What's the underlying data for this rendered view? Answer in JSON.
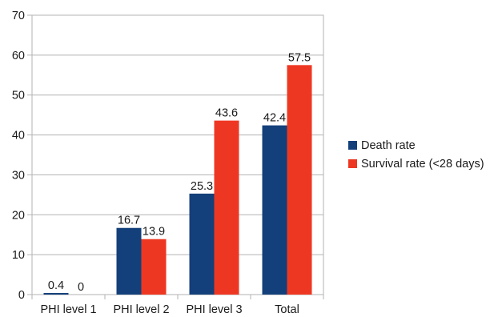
{
  "chart_data": {
    "type": "bar",
    "title": "",
    "xlabel": "",
    "ylabel": "",
    "categories": [
      "PHI level 1",
      "PHI level 2",
      "PHI level 3",
      "Total"
    ],
    "series": [
      {
        "name": "Death rate",
        "values": [
          0.4,
          16.7,
          25.3,
          42.4
        ],
        "labels": [
          "0.4",
          "16.7",
          "25.3",
          "42.4"
        ],
        "color": "#13407a"
      },
      {
        "name": "Survival rate (<28 days)",
        "values": [
          0,
          13.9,
          43.6,
          57.5
        ],
        "labels": [
          "0",
          "13.9",
          "43.6",
          "57.5"
        ],
        "color": "#ee3722"
      }
    ],
    "ylim": [
      0,
      70
    ],
    "yticks": [
      0,
      10,
      20,
      30,
      40,
      50,
      60,
      70
    ],
    "ytick_labels": [
      "0",
      "10",
      "20",
      "30",
      "40",
      "50",
      "60",
      "70"
    ],
    "grid": "horizontal",
    "legend_position": "right"
  }
}
